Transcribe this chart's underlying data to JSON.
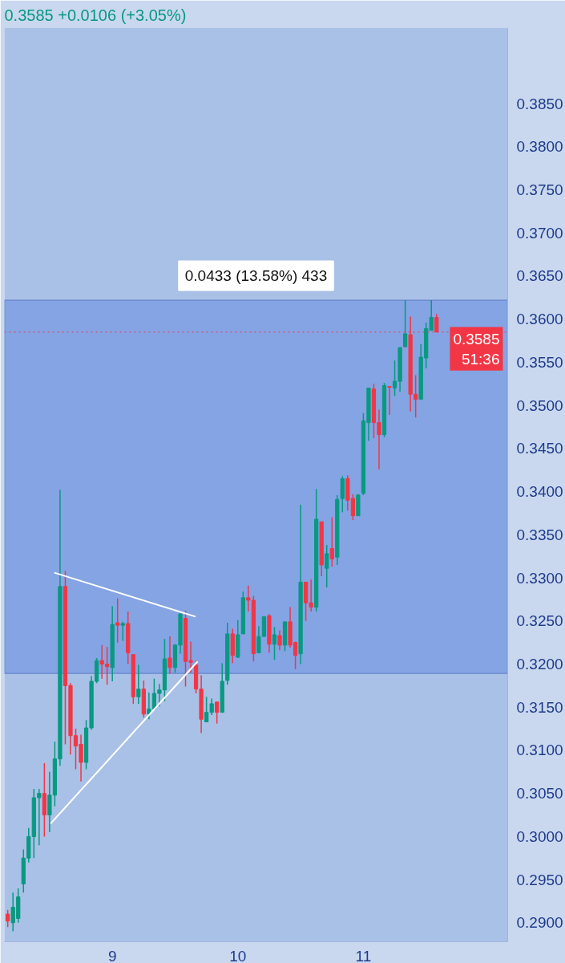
{
  "chart_data": {
    "type": "candlestick",
    "subtitle": "0.3585  +0.0106 (+3.05%)",
    "x": [
      8.1667,
      8.2083,
      8.25,
      8.2917,
      8.3333,
      8.375,
      8.4167,
      8.4583,
      8.5,
      8.5417,
      8.5833,
      8.625,
      8.6667,
      8.7083,
      8.75,
      8.7917,
      8.8333,
      8.875,
      8.9167,
      8.9583,
      9,
      9.0417,
      9.0833,
      9.125,
      9.1667,
      9.2083,
      9.25,
      9.2917,
      9.3333,
      9.375,
      9.4167,
      9.4583,
      9.5,
      9.5417,
      9.5833,
      9.625,
      9.6667,
      9.7083,
      9.75,
      9.7917,
      9.8333,
      9.875,
      9.9167,
      9.9583,
      10,
      10.0417,
      10.0833,
      10.125,
      10.1667,
      10.2083,
      10.25,
      10.2917,
      10.3333,
      10.375,
      10.4167,
      10.4583,
      10.5,
      10.5417,
      10.5833,
      10.625,
      10.6667,
      10.7083,
      10.75,
      10.7917,
      10.8333,
      10.875,
      10.9167,
      10.9583,
      11,
      11.0417,
      11.0833,
      11.125,
      11.1667,
      11.2083,
      11.25,
      11.2917,
      11.3333,
      11.375,
      11.4167,
      11.4583,
      11.5,
      11.5417,
      11.5833
    ],
    "ohlc": [
      [
        0.291,
        0.2915,
        0.2895,
        0.2902
      ],
      [
        0.29,
        0.2935,
        0.289,
        0.2918
      ],
      [
        0.2905,
        0.294,
        0.29,
        0.293
      ],
      [
        0.2945,
        0.2985,
        0.2935,
        0.2975
      ],
      [
        0.2975,
        0.301,
        0.297,
        0.3
      ],
      [
        0.3,
        0.3055,
        0.2975,
        0.3045
      ],
      [
        0.3045,
        0.3055,
        0.299,
        0.305
      ],
      [
        0.305,
        0.3085,
        0.3,
        0.3025
      ],
      [
        0.3025,
        0.3075,
        0.3005,
        0.3048
      ],
      [
        0.3048,
        0.311,
        0.3035,
        0.309
      ],
      [
        0.309,
        0.3402,
        0.3082,
        0.329
      ],
      [
        0.329,
        0.3308,
        0.3107,
        0.3175
      ],
      [
        0.3175,
        0.3178,
        0.3095,
        0.3117
      ],
      [
        0.3117,
        0.3125,
        0.3078,
        0.3105
      ],
      [
        0.3107,
        0.3118,
        0.3064,
        0.3086
      ],
      [
        0.3086,
        0.3135,
        0.3078,
        0.3126
      ],
      [
        0.3126,
        0.3186,
        0.3124,
        0.318
      ],
      [
        0.318,
        0.3207,
        0.3178,
        0.3204
      ],
      [
        0.3204,
        0.3222,
        0.3183,
        0.32
      ],
      [
        0.32,
        0.322,
        0.3176,
        0.3197
      ],
      [
        0.3196,
        0.3267,
        0.318,
        0.3246
      ],
      [
        0.3248,
        0.3276,
        0.3225,
        0.3245
      ],
      [
        0.3245,
        0.3249,
        0.3227,
        0.3247
      ],
      [
        0.3247,
        0.3261,
        0.32,
        0.3213
      ],
      [
        0.3211,
        0.3211,
        0.3154,
        0.3162
      ],
      [
        0.3162,
        0.3199,
        0.3154,
        0.3171
      ],
      [
        0.3171,
        0.3181,
        0.3138,
        0.3142
      ],
      [
        0.3142,
        0.3167,
        0.3136,
        0.3148
      ],
      [
        0.3148,
        0.3183,
        0.3147,
        0.3166
      ],
      [
        0.3166,
        0.3177,
        0.3151,
        0.317
      ],
      [
        0.317,
        0.3229,
        0.3157,
        0.3206
      ],
      [
        0.3207,
        0.3232,
        0.3189,
        0.3196
      ],
      [
        0.3196,
        0.3223,
        0.319,
        0.3222
      ],
      [
        0.3222,
        0.3259,
        0.3212,
        0.3258
      ],
      [
        0.3253,
        0.3262,
        0.3174,
        0.3203
      ],
      [
        0.3204,
        0.3226,
        0.319,
        0.3202
      ],
      [
        0.3199,
        0.3204,
        0.3166,
        0.3171
      ],
      [
        0.3171,
        0.3187,
        0.312,
        0.3136
      ],
      [
        0.3133,
        0.3162,
        0.3133,
        0.3144
      ],
      [
        0.3144,
        0.316,
        0.3141,
        0.3154
      ],
      [
        0.3156,
        0.3156,
        0.3131,
        0.3144
      ],
      [
        0.3144,
        0.3201,
        0.3144,
        0.318
      ],
      [
        0.3181,
        0.3248,
        0.3176,
        0.3235
      ],
      [
        0.3235,
        0.3241,
        0.3201,
        0.321
      ],
      [
        0.3208,
        0.3251,
        0.3207,
        0.3234
      ],
      [
        0.3235,
        0.3284,
        0.3235,
        0.3277
      ],
      [
        0.3277,
        0.3291,
        0.3261,
        0.3274
      ],
      [
        0.3274,
        0.3279,
        0.3203,
        0.3212
      ],
      [
        0.3213,
        0.3244,
        0.3213,
        0.3232
      ],
      [
        0.3232,
        0.3255,
        0.3232,
        0.3255
      ],
      [
        0.3256,
        0.3258,
        0.3213,
        0.3223
      ],
      [
        0.3223,
        0.3243,
        0.3205,
        0.3234
      ],
      [
        0.3233,
        0.3239,
        0.3216,
        0.3222
      ],
      [
        0.3222,
        0.3249,
        0.3215,
        0.3249
      ],
      [
        0.3249,
        0.3266,
        0.3219,
        0.3222
      ],
      [
        0.3225,
        0.3226,
        0.3194,
        0.321
      ],
      [
        0.3212,
        0.3385,
        0.32,
        0.3295
      ],
      [
        0.3295,
        0.3295,
        0.325,
        0.3271
      ],
      [
        0.3271,
        0.3298,
        0.3261,
        0.3266
      ],
      [
        0.3266,
        0.3403,
        0.3261,
        0.3368
      ],
      [
        0.3365,
        0.3365,
        0.3302,
        0.3315
      ],
      [
        0.3311,
        0.3338,
        0.3289,
        0.3328
      ],
      [
        0.3334,
        0.337,
        0.3313,
        0.3322
      ],
      [
        0.3324,
        0.3396,
        0.3315,
        0.3391
      ],
      [
        0.3392,
        0.3418,
        0.3376,
        0.3415
      ],
      [
        0.3415,
        0.3419,
        0.3378,
        0.339
      ],
      [
        0.3392,
        0.3397,
        0.3367,
        0.3372
      ],
      [
        0.3372,
        0.3397,
        0.3372,
        0.3396
      ],
      [
        0.3398,
        0.3491,
        0.3396,
        0.3482
      ],
      [
        0.348,
        0.352,
        0.3459,
        0.352
      ],
      [
        0.3519,
        0.3525,
        0.3462,
        0.348
      ],
      [
        0.348,
        0.3495,
        0.3426,
        0.3466
      ],
      [
        0.3466,
        0.3526,
        0.3463,
        0.3523
      ],
      [
        0.3522,
        0.3522,
        0.3489,
        0.3521
      ],
      [
        0.352,
        0.3552,
        0.3511,
        0.3528
      ],
      [
        0.3528,
        0.3567,
        0.3516,
        0.3567
      ],
      [
        0.3568,
        0.3622,
        0.3568,
        0.3583
      ],
      [
        0.3582,
        0.3603,
        0.3493,
        0.3513
      ],
      [
        0.3513,
        0.3535,
        0.3486,
        0.3507
      ],
      [
        0.3507,
        0.3571,
        0.3507,
        0.3556
      ],
      [
        0.3555,
        0.3596,
        0.3543,
        0.3589
      ],
      [
        0.3587,
        0.3622,
        0.3587,
        0.3602
      ],
      [
        0.3602,
        0.3606,
        0.3585,
        0.3585
      ]
    ],
    "colors": [
      "#f23645",
      "#089981",
      "#089981",
      "#089981",
      "#089981",
      "#089981",
      "#089981",
      "#f23645",
      "#089981",
      "#089981",
      "#089981",
      "#f23645",
      "#f23645",
      "#f23645",
      "#f23645",
      "#089981",
      "#089981",
      "#089981",
      "#f23645",
      "#f23645",
      "#089981",
      "#f23645",
      "#089981",
      "#f23645",
      "#f23645",
      "#089981",
      "#f23645",
      "#089981",
      "#089981",
      "#089981",
      "#089981",
      "#f23645",
      "#089981",
      "#089981",
      "#f23645",
      "#f23645",
      "#f23645",
      "#f23645",
      "#089981",
      "#089981",
      "#f23645",
      "#089981",
      "#089981",
      "#f23645",
      "#089981",
      "#089981",
      "#f23645",
      "#f23645",
      "#089981",
      "#089981",
      "#f23645",
      "#089981",
      "#f23645",
      "#089981",
      "#f23645",
      "#f23645",
      "#089981",
      "#f23645",
      "#f23645",
      "#089981",
      "#f23645",
      "#089981",
      "#f23645",
      "#089981",
      "#089981",
      "#f23645",
      "#f23645",
      "#089981",
      "#089981",
      "#089981",
      "#f23645",
      "#f23645",
      "#089981",
      "#f23645",
      "#089981",
      "#089981",
      "#089981",
      "#f23645",
      "#f23645",
      "#089981",
      "#089981",
      "#089981",
      "#f23645"
    ],
    "series": [
      {
        "type": "line",
        "color": "#ffffff",
        "x": [
          8.5375,
          9.6625
        ],
        "values": [
          0.3306,
          0.3255
        ]
      },
      {
        "type": "line",
        "color": "#ffffff",
        "x": [
          8.5083,
          9.6792
        ],
        "values": [
          0.3015,
          0.3203
        ]
      }
    ],
    "xlim": [
      8.14,
      12.15
    ],
    "ylim": [
      0.2878,
      0.3938
    ],
    "xticks": [
      9,
      10,
      11
    ],
    "yticks": [
      {
        "value": 0.29,
        "label": "0.2900"
      },
      {
        "value": 0.295,
        "label": "0.2950"
      },
      {
        "value": 0.3,
        "label": "0.3000"
      },
      {
        "value": 0.305,
        "label": "0.3050"
      },
      {
        "value": 0.31,
        "label": "0.3100"
      },
      {
        "value": 0.315,
        "label": "0.3150"
      },
      {
        "value": 0.32,
        "label": "0.3200"
      },
      {
        "value": 0.325,
        "label": "0.3250"
      },
      {
        "value": 0.33,
        "label": "0.3300"
      },
      {
        "value": 0.335,
        "label": "0.3350"
      },
      {
        "value": 0.34,
        "label": "0.3400"
      },
      {
        "value": 0.345,
        "label": "0.3450"
      },
      {
        "value": 0.35,
        "label": "0.3500"
      },
      {
        "value": 0.355,
        "label": "0.3550"
      },
      {
        "value": 0.36,
        "label": "0.3600"
      },
      {
        "value": 0.365,
        "label": "0.3650"
      },
      {
        "value": 0.37,
        "label": "0.3700"
      },
      {
        "value": 0.375,
        "label": "0.3750"
      },
      {
        "value": 0.38,
        "label": "0.3800"
      },
      {
        "value": 0.385,
        "label": "0.3850"
      }
    ],
    "bands": [
      {
        "axis": "y",
        "from": 0.3189,
        "to": 0.3622,
        "label": "0.0433 (13.58%) 433",
        "color": "#3f6fe0"
      }
    ],
    "ref_lines": [
      {
        "axis": "y",
        "value": 0.3585,
        "label": "0.3585",
        "color": "#f23645",
        "line_style": "dotted"
      }
    ],
    "annotations": [
      "51:36"
    ]
  }
}
